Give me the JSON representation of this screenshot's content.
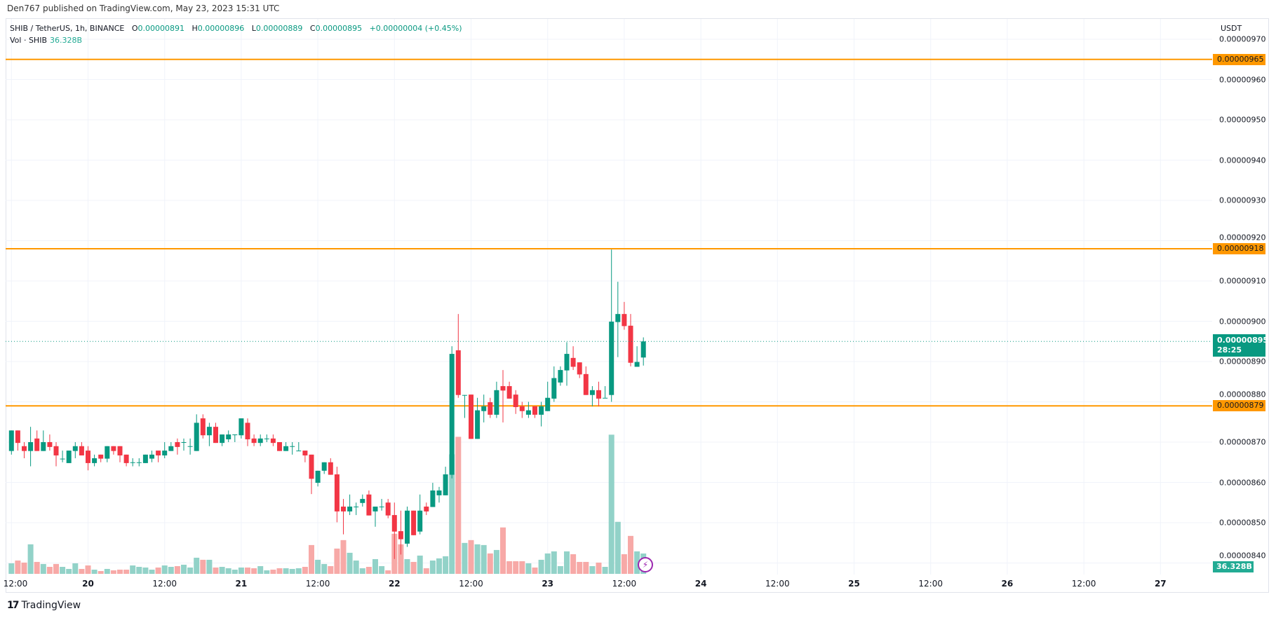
{
  "published": "Den767 published on TradingView.com, May 23, 2023 15:31 UTC",
  "legend": {
    "symbol": "SHIB / TetherUS, 1h, BINANCE",
    "o_label": "O",
    "o": "0.00000891",
    "h_label": "H",
    "h": "0.00000896",
    "l_label": "L",
    "l": "0.00000889",
    "c_label": "C",
    "c": "0.00000895",
    "change": "+0.00000004 (+0.45%)"
  },
  "volume_legend": {
    "label": "Vol · SHIB",
    "value": "36.328B"
  },
  "price_axis": {
    "currency": "USDT",
    "ticks": [
      "0.00000970",
      "0.00000960",
      "0.00000950",
      "0.00000940",
      "0.00000930",
      "0.00000920",
      "0.00000910",
      "0.00000900",
      "0.00000890",
      "0.00000880",
      "0.00000870",
      "0.00000860",
      "0.00000850",
      "0.00000840"
    ],
    "current_price_label": "0.00000895",
    "countdown": "28:25",
    "volume_label": "36.328B"
  },
  "time_axis": {
    "ticks": [
      "12:00",
      "20",
      "12:00",
      "21",
      "12:00",
      "22",
      "12:00",
      "23",
      "12:00",
      "24",
      "12:00",
      "25",
      "12:00",
      "26",
      "12:00",
      "27"
    ]
  },
  "horizontal_lines": [
    {
      "price": 9.65e-06,
      "label": "0.00000965",
      "color": "#FF9800"
    },
    {
      "price": 9.18e-06,
      "label": "0.00000918",
      "color": "#FF9800"
    },
    {
      "price": 8.79e-06,
      "label": "0.00000879",
      "color": "#FF9800"
    }
  ],
  "colors": {
    "up": "#089981",
    "down": "#F23645",
    "vol_up": "#92D2C8",
    "vol_down": "#F7A9A7",
    "level": "#FF9800",
    "grid": "#F0F3FA"
  },
  "brand": "TradingView",
  "chart_data": {
    "type": "candlestick",
    "symbol": "SHIB / TetherUS",
    "interval": "1h",
    "start": "2023-05-19 12:00",
    "ylim": [
      8.4e-06,
      9.7e-06
    ],
    "grid": true,
    "volume_unit": "B",
    "columns": [
      "open",
      "high",
      "low",
      "close",
      "volume"
    ],
    "candles": [
      [
        8.678e-06,
        8.729e-06,
        8.669e-06,
        8.729e-06,
        18.8
      ],
      [
        8.729e-06,
        8.729e-06,
        8.679e-06,
        8.698e-06,
        23.8
      ],
      [
        8.69e-06,
        8.7e-06,
        8.66e-06,
        8.678e-06,
        20.1
      ],
      [
        8.678e-06,
        8.738e-06,
        8.64e-06,
        8.7e-06,
        52.7
      ],
      [
        8.709e-06,
        8.729e-06,
        8.678e-06,
        8.678e-06,
        21.3
      ],
      [
        8.678e-06,
        8.729e-06,
        8.678e-06,
        8.7e-06,
        17.6
      ],
      [
        8.7e-06,
        8.719e-06,
        8.679e-06,
        8.688e-06,
        12.5
      ],
      [
        8.69e-06,
        8.7e-06,
        8.64e-06,
        8.667e-06,
        17.6
      ],
      [
        8.659e-06,
        8.679e-06,
        8.65e-06,
        8.659e-06,
        12.5
      ],
      [
        8.648e-06,
        8.679e-06,
        8.648e-06,
        8.679e-06,
        8.8
      ],
      [
        8.678e-06,
        8.7e-06,
        8.66e-06,
        8.69e-06,
        18.8
      ],
      [
        8.69e-06,
        8.7e-06,
        8.667e-06,
        8.667e-06,
        8.8
      ],
      [
        8.679e-06,
        8.69e-06,
        8.63e-06,
        8.648e-06,
        15.0
      ],
      [
        8.648e-06,
        8.669e-06,
        8.64e-06,
        8.66e-06,
        7.5
      ],
      [
        8.669e-06,
        8.669e-06,
        8.65e-06,
        8.659e-06,
        5.0
      ],
      [
        8.659e-06,
        8.69e-06,
        8.65e-06,
        8.69e-06,
        8.8
      ],
      [
        8.69e-06,
        8.69e-06,
        8.669e-06,
        8.678e-06,
        6.3
      ],
      [
        8.69e-06,
        8.69e-06,
        8.65e-06,
        8.667e-06,
        7.5
      ],
      [
        8.669e-06,
        8.669e-06,
        8.64e-06,
        8.648e-06,
        7.5
      ],
      [
        8.65e-06,
        8.66e-06,
        8.64e-06,
        8.65e-06,
        15.0
      ],
      [
        8.65e-06,
        8.66e-06,
        8.64e-06,
        8.65e-06,
        12.5
      ],
      [
        8.648e-06,
        8.669e-06,
        8.648e-06,
        8.669e-06,
        11.3
      ],
      [
        8.659e-06,
        8.679e-06,
        8.65e-06,
        8.669e-06,
        7.5
      ],
      [
        8.679e-06,
        8.679e-06,
        8.65e-06,
        8.667e-06,
        11.3
      ],
      [
        8.667e-06,
        8.7e-06,
        8.66e-06,
        8.679e-06,
        15.0
      ],
      [
        8.678e-06,
        8.7e-06,
        8.678e-06,
        8.69e-06,
        12.5
      ],
      [
        8.7e-06,
        8.709e-06,
        8.669e-06,
        8.688e-06,
        13.8
      ],
      [
        8.7e-06,
        8.709e-06,
        8.679e-06,
        8.7e-06,
        16.3
      ],
      [
        8.69e-06,
        8.709e-06,
        8.669e-06,
        8.69e-06,
        11.3
      ],
      [
        8.678e-06,
        8.769e-06,
        8.678e-06,
        8.748e-06,
        28.8
      ],
      [
        8.759e-06,
        8.769e-06,
        8.709e-06,
        8.717e-06,
        25.1
      ],
      [
        8.717e-06,
        8.748e-06,
        8.69e-06,
        8.738e-06,
        25.1
      ],
      [
        8.738e-06,
        8.748e-06,
        8.698e-06,
        8.698e-06,
        11.3
      ],
      [
        8.698e-06,
        8.719e-06,
        8.69e-06,
        8.719e-06,
        12.5
      ],
      [
        8.707e-06,
        8.729e-06,
        8.7e-06,
        8.719e-06,
        10.0
      ],
      [
        8.719e-06,
        8.719e-06,
        8.7e-06,
        8.719e-06,
        7.5
      ],
      [
        8.717e-06,
        8.759e-06,
        8.709e-06,
        8.759e-06,
        11.3
      ],
      [
        8.748e-06,
        8.759e-06,
        8.69e-06,
        8.707e-06,
        11.3
      ],
      [
        8.709e-06,
        8.719e-06,
        8.69e-06,
        8.698e-06,
        10.0
      ],
      [
        8.698e-06,
        8.719e-06,
        8.69e-06,
        8.709e-06,
        13.8
      ],
      [
        8.709e-06,
        8.719e-06,
        8.7e-06,
        8.709e-06,
        6.3
      ],
      [
        8.709e-06,
        8.719e-06,
        8.69e-06,
        8.698e-06,
        7.5
      ],
      [
        8.7e-06,
        8.7e-06,
        8.678e-06,
        8.678e-06,
        10.0
      ],
      [
        8.678e-06,
        8.7e-06,
        8.678e-06,
        8.69e-06,
        10.0
      ],
      [
        8.69e-06,
        8.7e-06,
        8.669e-06,
        8.69e-06,
        8.8
      ],
      [
        8.679e-06,
        8.7e-06,
        8.679e-06,
        8.679e-06,
        10.0
      ],
      [
        8.679e-06,
        8.679e-06,
        8.65e-06,
        8.667e-06,
        12.5
      ],
      [
        8.669e-06,
        8.669e-06,
        8.571e-06,
        8.609e-06,
        51.4
      ],
      [
        8.599e-06,
        8.629e-06,
        8.59e-06,
        8.629e-06,
        25.1
      ],
      [
        8.629e-06,
        8.65e-06,
        8.621e-06,
        8.65e-06,
        17.6
      ],
      [
        8.65e-06,
        8.66e-06,
        8.619e-06,
        8.619e-06,
        13.8
      ],
      [
        8.62e-06,
        8.639e-06,
        8.501e-06,
        8.528e-06,
        45.1
      ],
      [
        8.54e-06,
        8.559e-06,
        8.471e-06,
        8.528e-06,
        60.2
      ],
      [
        8.528e-06,
        8.57e-06,
        8.519e-06,
        8.54e-06,
        37.6
      ],
      [
        8.54e-06,
        8.55e-06,
        8.519e-06,
        8.54e-06,
        23.8
      ],
      [
        8.549e-06,
        8.57e-06,
        8.54e-06,
        8.559e-06,
        10.0
      ],
      [
        8.57e-06,
        8.58e-06,
        8.518e-06,
        8.518e-06,
        12.5
      ],
      [
        8.528e-06,
        8.54e-06,
        8.49e-06,
        8.54e-06,
        26.3
      ],
      [
        8.54e-06,
        8.559e-06,
        8.53e-06,
        8.54e-06,
        13.8
      ],
      [
        8.55e-06,
        8.559e-06,
        8.511e-06,
        8.518e-06,
        6.3
      ],
      [
        8.519e-06,
        8.55e-06,
        8.41e-06,
        8.478e-06,
        71.5
      ],
      [
        8.479e-06,
        8.53e-06,
        8.421e-06,
        8.459e-06,
        52.7
      ],
      [
        8.448e-06,
        8.54e-06,
        8.44e-06,
        8.53e-06,
        26.3
      ],
      [
        8.53e-06,
        8.53e-06,
        8.469e-06,
        8.469e-06,
        21.3
      ],
      [
        8.478e-06,
        8.57e-06,
        8.471e-06,
        8.53e-06,
        32.6
      ],
      [
        8.54e-06,
        8.55e-06,
        8.519e-06,
        8.528e-06,
        10.0
      ],
      [
        8.539e-06,
        8.599e-06,
        8.539e-06,
        8.58e-06,
        23.8
      ],
      [
        8.568e-06,
        8.589e-06,
        8.55e-06,
        8.58e-06,
        27.6
      ],
      [
        8.568e-06,
        8.639e-06,
        8.568e-06,
        8.62e-06,
        31.4
      ],
      [
        8.619e-06,
        8.938e-06,
        8.61e-06,
        8.919e-06,
        213.2
      ],
      [
        8.928e-06,
        9.018e-06,
        8.81e-06,
        8.817e-06,
        244.5
      ],
      [
        8.817e-06,
        8.817e-06,
        8.76e-06,
        8.817e-06,
        55.2
      ],
      [
        8.818e-06,
        8.818e-06,
        8.708e-06,
        8.708e-06,
        60.2
      ],
      [
        8.708e-06,
        8.81e-06,
        8.708e-06,
        8.779e-06,
        52.7
      ],
      [
        8.777e-06,
        8.818e-06,
        8.749e-06,
        8.789e-06,
        51.4
      ],
      [
        8.799e-06,
        8.81e-06,
        8.76e-06,
        8.768e-06,
        36.4
      ],
      [
        8.768e-06,
        8.85e-06,
        8.76e-06,
        8.829e-06,
        42.6
      ],
      [
        8.839e-06,
        8.879e-06,
        8.749e-06,
        8.828e-06,
        82.8
      ],
      [
        8.839e-06,
        8.85e-06,
        8.808e-06,
        8.808e-06,
        22.6
      ],
      [
        8.818e-06,
        8.829e-06,
        8.77e-06,
        8.787e-06,
        22.6
      ],
      [
        8.789e-06,
        8.8e-06,
        8.76e-06,
        8.777e-06,
        22.6
      ],
      [
        8.768e-06,
        8.8e-06,
        8.76e-06,
        8.779e-06,
        18.8
      ],
      [
        8.789e-06,
        8.789e-06,
        8.76e-06,
        8.768e-06,
        11.3
      ],
      [
        8.768e-06,
        8.8e-06,
        8.739e-06,
        8.789e-06,
        25.1
      ],
      [
        8.777e-06,
        8.85e-06,
        8.777e-06,
        8.81e-06,
        36.4
      ],
      [
        8.808e-06,
        8.888e-06,
        8.8e-06,
        8.859e-06,
        40.1
      ],
      [
        8.848e-06,
        8.888e-06,
        8.84e-06,
        8.879e-06,
        13.8
      ],
      [
        8.878e-06,
        8.948e-06,
        8.84e-06,
        8.919e-06,
        40.1
      ],
      [
        8.909e-06,
        8.938e-06,
        8.879e-06,
        8.887e-06,
        35.1
      ],
      [
        8.898e-06,
        8.898e-06,
        8.859e-06,
        8.868e-06,
        21.3
      ],
      [
        8.869e-06,
        8.888e-06,
        8.817e-06,
        8.817e-06,
        21.3
      ],
      [
        8.817e-06,
        8.839e-06,
        8.789e-06,
        8.829e-06,
        13.8
      ],
      [
        8.829e-06,
        8.85e-06,
        8.789e-06,
        8.808e-06,
        20.1
      ],
      [
        8.81e-06,
        8.839e-06,
        8.81e-06,
        8.81e-06,
        12.5
      ],
      [
        8.817e-06,
        9.178e-06,
        8.8e-06,
        8.999e-06,
        248.3
      ],
      [
        8.998e-06,
        9.098e-06,
        8.911e-06,
        9.018e-06,
        92.8
      ],
      [
        9.018e-06,
        9.048e-06,
        8.979e-06,
        8.988e-06,
        35.1
      ],
      [
        8.989e-06,
        9.018e-06,
        8.888e-06,
        8.897e-06,
        67.7
      ],
      [
        8.887e-06,
        8.938e-06,
        8.887e-06,
        8.899e-06,
        40.1
      ],
      [
        8.91e-06,
        8.96e-06,
        8.89e-06,
        8.95e-06,
        36.328
      ]
    ]
  }
}
